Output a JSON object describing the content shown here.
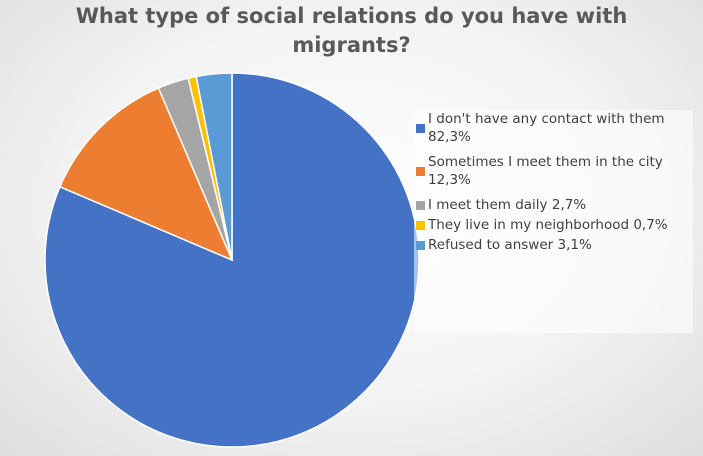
{
  "chart_data": {
    "type": "pie",
    "title_lines": [
      "What type of social relations do you have with",
      "migrants?"
    ],
    "legend_position": "right",
    "start_angle_deg": 0,
    "direction": "clockwise",
    "slices": [
      {
        "label": "I don't have any contact with them\n82,3%",
        "value": 82.3,
        "color": "#4472C4"
      },
      {
        "label": "Sometimes I meet them in the city\n12,3%",
        "value": 12.3,
        "color": "#ED7D31"
      },
      {
        "label": "I meet them daily 2,7%",
        "value": 2.7,
        "color": "#A5A5A5"
      },
      {
        "label": "They live in my neighborhood 0,7%",
        "value": 0.7,
        "color": "#FFC000"
      },
      {
        "label": "Refused to answer 3,1%",
        "value": 3.1,
        "color": "#5B9BD5"
      }
    ]
  }
}
